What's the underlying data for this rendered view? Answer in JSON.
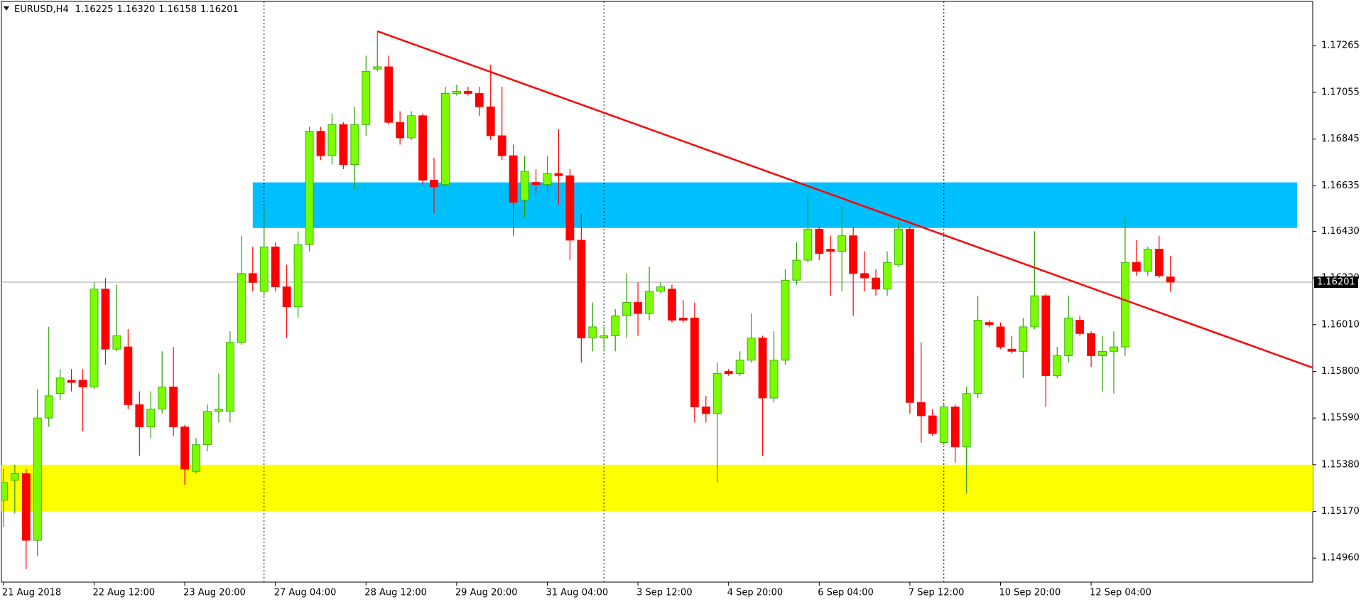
{
  "chart_data": {
    "type": "candlestick",
    "title": "EURUSD,H4",
    "quote": {
      "open": "1.16225",
      "high": "1.16320",
      "low": "1.16158",
      "close": "1.16201"
    },
    "categories": [
      "21 Aug 2018",
      null,
      null,
      null,
      null,
      null,
      null,
      null,
      "22 Aug 12:00",
      null,
      null,
      null,
      null,
      null,
      null,
      null,
      "23 Aug 20:00",
      null,
      null,
      null,
      null,
      null,
      null,
      null,
      "27 Aug 04:00",
      null,
      null,
      null,
      null,
      null,
      null,
      null,
      "28 Aug 12:00",
      null,
      null,
      null,
      null,
      null,
      null,
      null,
      "29 Aug 20:00",
      null,
      null,
      null,
      null,
      null,
      null,
      null,
      "31 Aug 04:00",
      null,
      null,
      null,
      null,
      null,
      null,
      null,
      "3 Sep 12:00",
      null,
      null,
      null,
      null,
      null,
      null,
      null,
      "4 Sep 20:00",
      null,
      null,
      null,
      null,
      null,
      null,
      null,
      "6 Sep 04:00",
      null,
      null,
      null,
      null,
      null,
      null,
      null,
      "7 Sep 12:00",
      null,
      null,
      null,
      null,
      null,
      null,
      null,
      "10 Sep 20:00",
      null,
      null,
      null,
      null,
      null,
      null,
      null,
      "12 Sep 04:00",
      null,
      null,
      null,
      null,
      null,
      null,
      null
    ],
    "open": [
      1.1522,
      1.1531,
      1.1534,
      1.1504,
      1.1559,
      1.157,
      1.1576,
      1.1576,
      1.1573,
      1.1617,
      1.159,
      1.1591,
      1.1565,
      1.1555,
      1.1563,
      1.1573,
      1.1555,
      1.1535,
      1.1547,
      1.1562,
      1.1562,
      1.1593,
      1.1624,
      1.1616,
      1.1636,
      1.1618,
      1.1609,
      1.1637,
      1.1688,
      1.1677,
      1.1691,
      1.1673,
      1.1691,
      1.1716,
      1.1717,
      1.1692,
      1.1685,
      1.1695,
      1.1666,
      1.1664,
      1.1705,
      1.1706,
      1.1705,
      1.1699,
      1.1686,
      1.1677,
      1.1657,
      1.1665,
      1.1664,
      1.1669,
      1.1668,
      1.1639,
      1.1595,
      1.1595,
      1.1596,
      1.1605,
      1.1611,
      1.1606,
      1.1616,
      1.1617,
      1.1604,
      1.1604,
      1.1564,
      1.1561,
      1.158,
      1.1579,
      1.1585,
      1.1595,
      1.1568,
      1.1585,
      1.1621,
      1.163,
      1.1644,
      1.1635,
      1.1634,
      1.1641,
      1.1624,
      1.1622,
      1.1617,
      1.1628,
      1.1644,
      1.1566,
      1.156,
      1.1548,
      1.1564,
      1.1546,
      1.157,
      1.1602,
      1.16,
      1.159,
      1.1589,
      1.16,
      1.1614,
      1.1578,
      1.1587,
      1.1603,
      1.1597,
      1.1587,
      1.1589,
      1.1591,
      1.1629,
      1.1625,
      1.1635,
      1.16225
    ],
    "high": [
      1.1536,
      1.1538,
      1.1536,
      1.1572,
      1.16,
      1.1581,
      1.1581,
      1.1581,
      1.162,
      1.1622,
      1.1619,
      1.1599,
      1.1571,
      1.1571,
      1.1589,
      1.1591,
      1.1556,
      1.155,
      1.1565,
      1.1579,
      1.1598,
      1.1641,
      1.1636,
      1.1653,
      1.1638,
      1.1628,
      1.1643,
      1.169,
      1.169,
      1.1696,
      1.1692,
      1.1699,
      1.1722,
      1.1733,
      1.1722,
      1.1697,
      1.1697,
      1.1696,
      1.1676,
      1.1708,
      1.1709,
      1.1708,
      1.1708,
      1.1718,
      1.1708,
      1.1682,
      1.1677,
      1.1671,
      1.1677,
      1.1689,
      1.1671,
      1.1651,
      1.1611,
      1.16,
      1.1608,
      1.1624,
      1.162,
      1.1627,
      1.162,
      1.1619,
      1.1612,
      1.1611,
      1.1569,
      1.1584,
      1.1581,
      1.1589,
      1.1606,
      1.1596,
      1.1598,
      1.1626,
      1.1638,
      1.1659,
      1.1645,
      1.1641,
      1.1654,
      1.1645,
      1.1634,
      1.1626,
      1.1634,
      1.1647,
      1.1645,
      1.1593,
      1.1563,
      1.1565,
      1.1565,
      1.1573,
      1.1614,
      1.1603,
      1.1602,
      1.1596,
      1.1604,
      1.1643,
      1.1615,
      1.1591,
      1.1614,
      1.1605,
      1.1598,
      1.1596,
      1.1598,
      1.1649,
      1.1639,
      1.1636,
      1.1641,
      1.1632
    ],
    "low": [
      1.151,
      1.1516,
      1.1491,
      1.1497,
      1.1555,
      1.1567,
      1.1571,
      1.1553,
      1.1572,
      1.1583,
      1.1589,
      1.1563,
      1.1542,
      1.155,
      1.1561,
      1.1551,
      1.1529,
      1.1534,
      1.1544,
      1.1557,
      1.1557,
      1.1592,
      1.1616,
      1.1614,
      1.1616,
      1.1595,
      1.1604,
      1.1634,
      1.1675,
      1.1673,
      1.1671,
      1.1662,
      1.1686,
      1.1715,
      1.1691,
      1.1682,
      1.1684,
      1.1664,
      1.1651,
      1.1663,
      1.1704,
      1.1704,
      1.1695,
      1.1684,
      1.1675,
      1.1641,
      1.1649,
      1.166,
      1.1661,
      1.1655,
      1.163,
      1.1584,
      1.1589,
      1.1589,
      1.1589,
      1.1595,
      1.1596,
      1.1603,
      1.1615,
      1.1602,
      1.1602,
      1.1557,
      1.1557,
      1.153,
      1.1578,
      1.1578,
      1.1584,
      1.1542,
      1.1566,
      1.1583,
      1.1619,
      1.1629,
      1.163,
      1.1614,
      1.1616,
      1.1605,
      1.1616,
      1.1614,
      1.1614,
      1.1627,
      1.1561,
      1.1548,
      1.1551,
      1.1547,
      1.1539,
      1.1525,
      1.1568,
      1.16,
      1.159,
      1.1588,
      1.1577,
      1.1599,
      1.1564,
      1.1577,
      1.1584,
      1.1596,
      1.1582,
      1.1571,
      1.157,
      1.1587,
      1.1623,
      1.1623,
      1.1622,
      1.16158
    ],
    "close": [
      1.153,
      1.1534,
      1.1504,
      1.1559,
      1.1569,
      1.1577,
      1.1575,
      1.1573,
      1.1617,
      1.159,
      1.1596,
      1.1565,
      1.1555,
      1.1563,
      1.1573,
      1.1555,
      1.1536,
      1.1547,
      1.1562,
      1.1563,
      1.1593,
      1.1624,
      1.162,
      1.1636,
      1.1618,
      1.1609,
      1.1637,
      1.1688,
      1.1677,
      1.1691,
      1.1673,
      1.1691,
      1.1715,
      1.1717,
      1.1692,
      1.1685,
      1.1695,
      1.1666,
      1.1663,
      1.1705,
      1.1706,
      1.1705,
      1.1699,
      1.1686,
      1.1677,
      1.1656,
      1.167,
      1.1664,
      1.1669,
      1.1668,
      1.1639,
      1.1595,
      1.16,
      1.1596,
      1.1605,
      1.1611,
      1.1606,
      1.1616,
      1.1618,
      1.1603,
      1.1603,
      1.1564,
      1.1561,
      1.1579,
      1.1579,
      1.1585,
      1.1595,
      1.1568,
      1.1585,
      1.1621,
      1.163,
      1.1644,
      1.1633,
      1.1634,
      1.1641,
      1.1624,
      1.1622,
      1.1617,
      1.1629,
      1.1644,
      1.1566,
      1.156,
      1.1552,
      1.1564,
      1.1546,
      1.157,
      1.1603,
      1.1601,
      1.1591,
      1.1589,
      1.16,
      1.1614,
      1.1578,
      1.1587,
      1.1604,
      1.1597,
      1.1587,
      1.1589,
      1.1591,
      1.1629,
      1.1625,
      1.1635,
      1.1623,
      1.16201
    ],
    "bull_color": "#7cfc00",
    "bear_color": "#ff0000",
    "ylim": [
      1.14852,
      1.17464
    ],
    "yticks": [
      1.17265,
      1.17055,
      1.16845,
      1.16635,
      {
        "value": 1.1643,
        "label": "1.16430"
      },
      {
        "value": 1.1622,
        "label": "1.16220"
      },
      {
        "value": 1.1601,
        "label": "1.16010"
      },
      {
        "value": 1.158,
        "label": "1.15800"
      },
      {
        "value": 1.1559,
        "label": "1.15590"
      },
      {
        "value": 1.1538,
        "label": "1.15380"
      },
      {
        "value": 1.1517,
        "label": "1.15170"
      },
      {
        "value": 1.1496,
        "label": "1.14960"
      }
    ],
    "period_separators": [
      23,
      53,
      83
    ],
    "zones": [
      {
        "color": "#ffff00",
        "ylim": [
          1.1517,
          1.1538
        ]
      },
      {
        "color": "#00bfff",
        "ylim": [
          1.16445,
          1.1665
        ]
      }
    ],
    "trendline": {
      "x": [
        33,
        99
      ],
      "y": [
        1.1733,
        1.1612
      ],
      "color": "#ff0000"
    }
  }
}
